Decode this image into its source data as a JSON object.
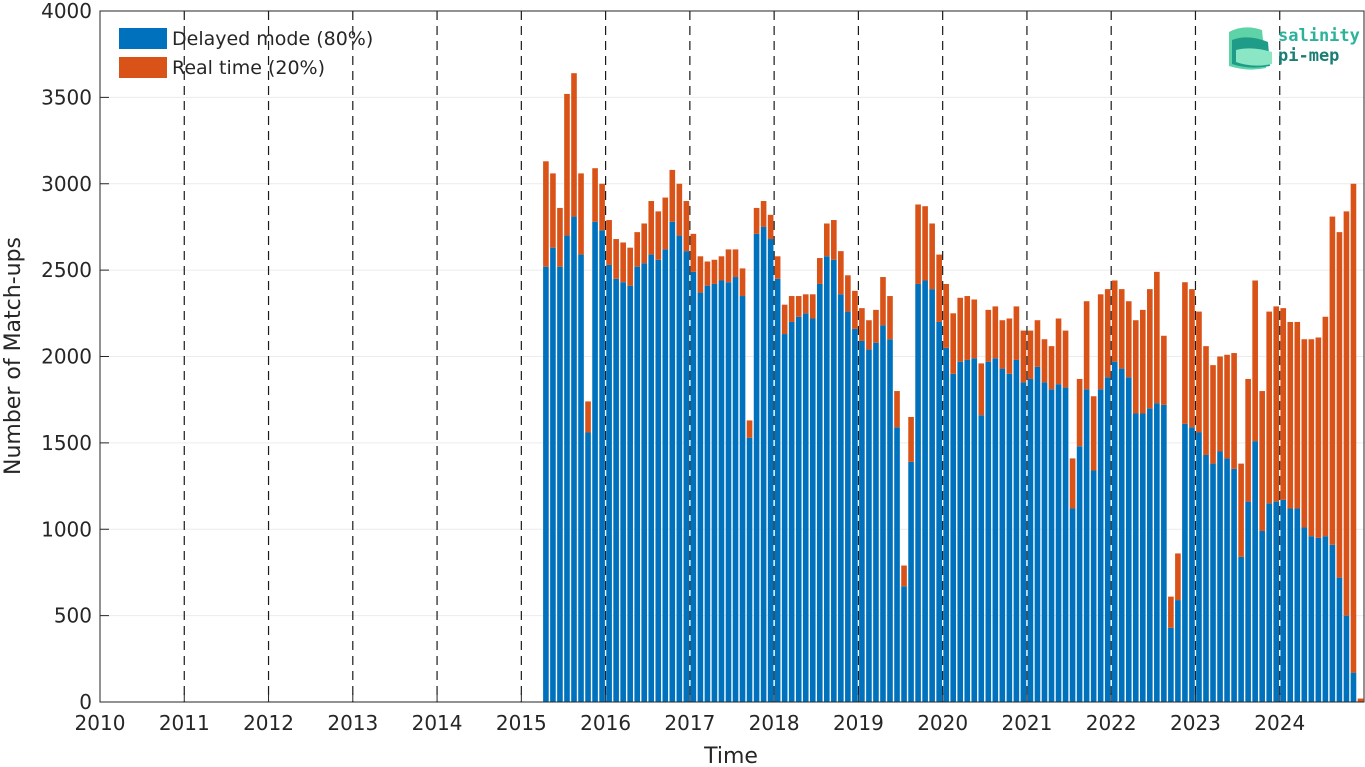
{
  "chart_data": {
    "type": "bar",
    "stacked": true,
    "xlabel": "Time",
    "ylabel": "Number of Match-ups",
    "xlim": [
      "2010-01",
      "2024-12"
    ],
    "ylim": [
      0,
      4000
    ],
    "y_ticks": [
      0,
      500,
      1000,
      1500,
      2000,
      2500,
      3000,
      3500,
      4000
    ],
    "x_ticks": [
      "2010",
      "2011",
      "2012",
      "2013",
      "2014",
      "2015",
      "2016",
      "2017",
      "2018",
      "2019",
      "2020",
      "2021",
      "2022",
      "2023",
      "2024"
    ],
    "year_separators": "dashed vertical lines at each year",
    "grid": "horizontal",
    "legend": {
      "placement": "top-left",
      "entries": [
        "Delayed mode (80%)",
        "Real time (20%)"
      ]
    },
    "colors": {
      "delayed": "#0072BD",
      "realtime": "#D95319"
    },
    "months": [
      "2015-04",
      "2015-05",
      "2015-06",
      "2015-07",
      "2015-08",
      "2015-09",
      "2015-10",
      "2015-11",
      "2015-12",
      "2016-01",
      "2016-02",
      "2016-03",
      "2016-04",
      "2016-05",
      "2016-06",
      "2016-07",
      "2016-08",
      "2016-09",
      "2016-10",
      "2016-11",
      "2016-12",
      "2017-01",
      "2017-02",
      "2017-03",
      "2017-04",
      "2017-05",
      "2017-06",
      "2017-07",
      "2017-08",
      "2017-09",
      "2017-10",
      "2017-11",
      "2017-12",
      "2018-01",
      "2018-02",
      "2018-03",
      "2018-04",
      "2018-05",
      "2018-06",
      "2018-07",
      "2018-08",
      "2018-09",
      "2018-10",
      "2018-11",
      "2018-12",
      "2019-01",
      "2019-02",
      "2019-03",
      "2019-04",
      "2019-05",
      "2019-06",
      "2019-07",
      "2019-08",
      "2019-09",
      "2019-10",
      "2019-11",
      "2019-12",
      "2020-01",
      "2020-02",
      "2020-03",
      "2020-04",
      "2020-05",
      "2020-06",
      "2020-07",
      "2020-08",
      "2020-09",
      "2020-10",
      "2020-11",
      "2020-12",
      "2021-01",
      "2021-02",
      "2021-03",
      "2021-04",
      "2021-05",
      "2021-06",
      "2021-07",
      "2021-08",
      "2021-09",
      "2021-10",
      "2021-11",
      "2021-12",
      "2022-01",
      "2022-02",
      "2022-03",
      "2022-04",
      "2022-05",
      "2022-06",
      "2022-07",
      "2022-08",
      "2022-09",
      "2022-10",
      "2022-11",
      "2022-12",
      "2023-01",
      "2023-02",
      "2023-03",
      "2023-04",
      "2023-05",
      "2023-06",
      "2023-07",
      "2023-08",
      "2023-09",
      "2023-10",
      "2023-11",
      "2023-12",
      "2024-01",
      "2024-02",
      "2024-03",
      "2024-04",
      "2024-05",
      "2024-06",
      "2024-07",
      "2024-08",
      "2024-09",
      "2024-10",
      "2024-11",
      "2024-12"
    ],
    "series": [
      {
        "name": "Delayed mode (80%)",
        "values": [
          2520,
          2630,
          2520,
          2700,
          2810,
          2590,
          1560,
          2780,
          2730,
          2530,
          2450,
          2430,
          2410,
          2520,
          2540,
          2590,
          2560,
          2620,
          2780,
          2700,
          2610,
          2490,
          2370,
          2410,
          2420,
          2440,
          2430,
          2460,
          2350,
          1530,
          2710,
          2750,
          2680,
          2450,
          2130,
          2200,
          2230,
          2250,
          2220,
          2420,
          2580,
          2560,
          2360,
          2260,
          2160,
          2090,
          2040,
          2080,
          2180,
          2100,
          1590,
          670,
          1390,
          2420,
          2440,
          2390,
          2200,
          2050,
          1900,
          1970,
          1980,
          1990,
          1660,
          1970,
          1990,
          1930,
          1900,
          1980,
          1850,
          1870,
          1940,
          1850,
          1810,
          1840,
          1820,
          1120,
          1480,
          1810,
          1340,
          1810,
          1880,
          1970,
          1930,
          1880,
          1670,
          1670,
          1700,
          1730,
          1720,
          430,
          590,
          1610,
          1590,
          1560,
          1430,
          1380,
          1450,
          1410,
          1350,
          840,
          1160,
          1510,
          990,
          1150,
          1160,
          1170,
          1120,
          1120,
          1010,
          960,
          950,
          960,
          910,
          720,
          500,
          170,
          0
        ]
      },
      {
        "name": "Real time (20%)",
        "values": [
          610,
          430,
          340,
          820,
          830,
          470,
          180,
          310,
          270,
          260,
          230,
          230,
          220,
          200,
          230,
          310,
          280,
          300,
          300,
          300,
          290,
          220,
          210,
          140,
          140,
          140,
          190,
          160,
          160,
          100,
          150,
          150,
          140,
          130,
          170,
          150,
          120,
          110,
          140,
          150,
          190,
          230,
          250,
          210,
          220,
          190,
          170,
          190,
          280,
          250,
          210,
          120,
          260,
          460,
          430,
          380,
          390,
          370,
          350,
          370,
          370,
          340,
          300,
          300,
          300,
          280,
          320,
          310,
          300,
          280,
          270,
          250,
          250,
          380,
          330,
          290,
          390,
          510,
          430,
          550,
          510,
          470,
          460,
          440,
          540,
          600,
          690,
          760,
          400,
          180,
          270,
          820,
          800,
          700,
          630,
          570,
          550,
          600,
          670,
          540,
          710,
          930,
          810,
          1110,
          1130,
          1110,
          1080,
          1080,
          1090,
          1140,
          1160,
          1270,
          1900,
          2000,
          2340,
          2830,
          20
        ]
      }
    ]
  },
  "logo": {
    "line1": "salinity",
    "line2": "pi-mep"
  }
}
